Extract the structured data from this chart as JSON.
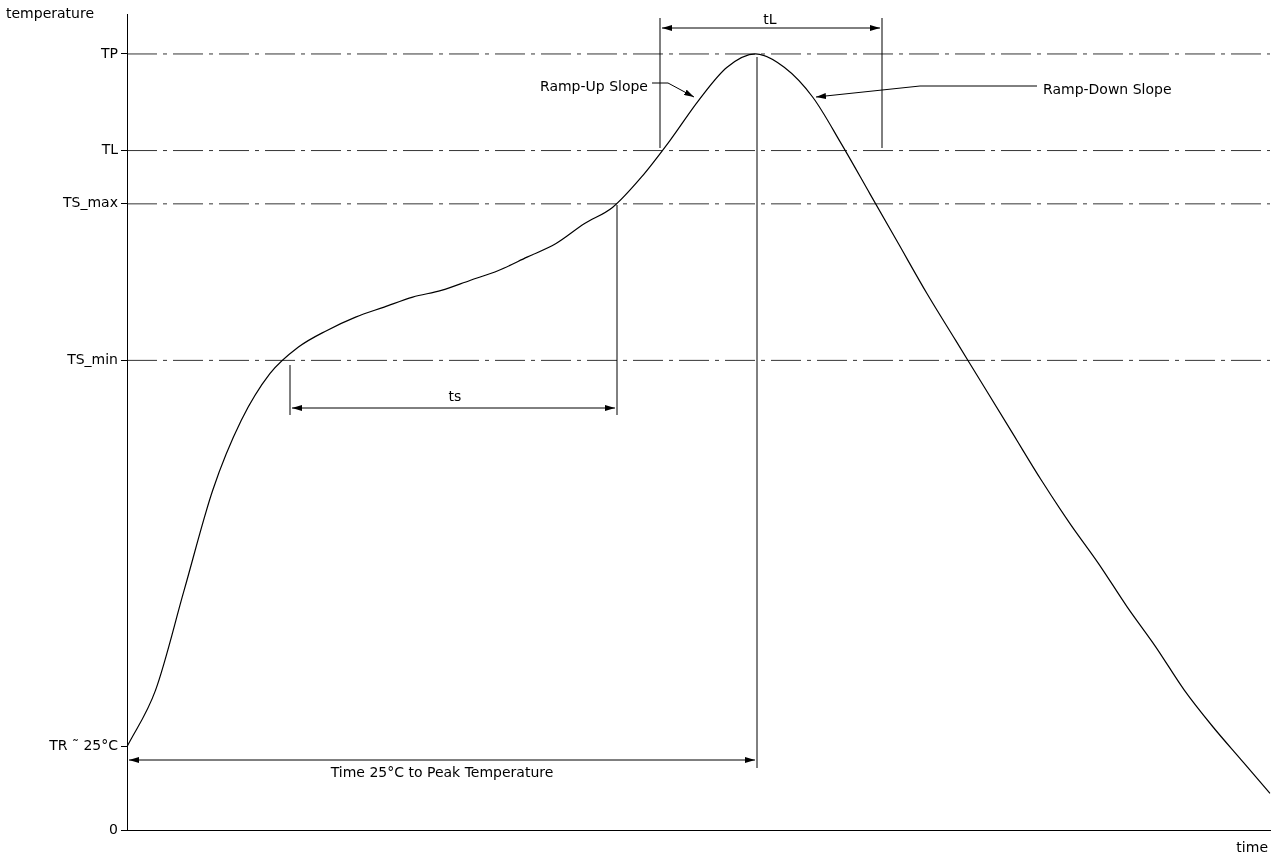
{
  "chart_data": {
    "type": "line",
    "xlabel": "time",
    "ylabel": "temperature",
    "categories": [
      null,
      null,
      null,
      null,
      null,
      null,
      null,
      null,
      null,
      null,
      null,
      null,
      null,
      null,
      null,
      null,
      null,
      null,
      null,
      null,
      null,
      null,
      null,
      null,
      null,
      null,
      null,
      null,
      null,
      null,
      null,
      null,
      null,
      null,
      null,
      null,
      null,
      null,
      null,
      null,
      null
    ],
    "series": [
      {
        "color": "#000000",
        "values": [
          25,
          42,
          72,
          102,
          123,
          137,
          145,
          150,
          154,
          157,
          160,
          162,
          165,
          168,
          172,
          176,
          182,
          187,
          196,
          207,
          219,
          229,
          233,
          229,
          220,
          206,
          191,
          176,
          161,
          147,
          133,
          119,
          105,
          92,
          80,
          67,
          55,
          42,
          31,
          21,
          11
        ]
      }
    ],
    "ylim": [
      0,
      245
    ],
    "yticks": [
      0,
      {
        "value": 25,
        "label": "TR ˜ 25°C"
      },
      {
        "value": 141,
        "label": "TS_min"
      },
      {
        "value": 188,
        "label": "TS_max"
      },
      {
        "value": 204,
        "label": "TL"
      },
      {
        "value": 233,
        "label": "TP"
      }
    ],
    "ref_lines": [
      {
        "axis": "y",
        "value": 233,
        "line_style": "dashed"
      },
      {
        "axis": "y",
        "value": 204,
        "line_style": "dashed"
      },
      {
        "axis": "y",
        "value": 188,
        "line_style": "dashed"
      },
      {
        "axis": "y",
        "value": 141,
        "line_style": "dashed"
      }
    ],
    "annotations": [
      "tL",
      "Ramp-Up Slope",
      "Ramp-Down Slope",
      "ts",
      "Time 25°C to Peak Temperature"
    ],
    "tick_labels": "y",
    "grid": false,
    "legend": false,
    "marker": "none",
    "line_style": "solid"
  }
}
